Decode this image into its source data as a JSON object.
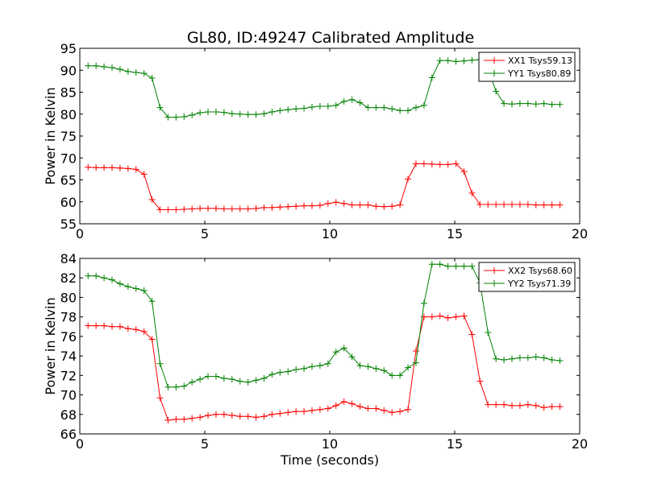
{
  "title": "GL80, ID:49247 Calibrated Amplitude",
  "colors": {
    "xx": "#ff0000",
    "yy": "#008000"
  },
  "chart_data": [
    {
      "type": "line",
      "xlabel": "",
      "ylabel": "Power in Kelvin",
      "xlim": [
        0,
        20
      ],
      "ylim": [
        55,
        95
      ],
      "xticks": [
        "0",
        "5",
        "10",
        "15",
        "20"
      ],
      "yticks": [
        "55",
        "60",
        "65",
        "70",
        "75",
        "80",
        "85",
        "90",
        "95"
      ],
      "legend_position": "top-right",
      "x": [
        0.33,
        0.65,
        0.97,
        1.29,
        1.61,
        1.93,
        2.25,
        2.57,
        2.89,
        3.21,
        3.53,
        3.85,
        4.17,
        4.49,
        4.81,
        5.13,
        5.45,
        5.77,
        6.09,
        6.41,
        6.73,
        7.05,
        7.37,
        7.69,
        8.01,
        8.33,
        8.65,
        8.97,
        9.29,
        9.61,
        9.93,
        10.25,
        10.57,
        10.89,
        11.21,
        11.53,
        11.85,
        12.17,
        12.49,
        12.81,
        13.13,
        13.45,
        13.77,
        14.09,
        14.41,
        14.73,
        15.05,
        15.37,
        15.69,
        16.01,
        16.33,
        16.65,
        16.97,
        17.29,
        17.61,
        17.93,
        18.25,
        18.57,
        18.89,
        19.21
      ],
      "series": [
        {
          "name": "XX1 Tsys59.13",
          "color": "#ff0000",
          "values": [
            67.9,
            67.8,
            67.8,
            67.8,
            67.7,
            67.6,
            67.4,
            66.3,
            60.5,
            58.2,
            58.2,
            58.2,
            58.3,
            58.4,
            58.5,
            58.5,
            58.5,
            58.4,
            58.4,
            58.4,
            58.4,
            58.5,
            58.7,
            58.7,
            58.8,
            58.9,
            59.0,
            59.1,
            59.1,
            59.2,
            59.6,
            59.9,
            59.6,
            59.3,
            59.3,
            59.3,
            59.0,
            58.9,
            59.0,
            59.3,
            65.2,
            68.7,
            68.7,
            68.6,
            68.5,
            68.5,
            68.7,
            66.9,
            62.0,
            59.4,
            59.4,
            59.4,
            59.4,
            59.4,
            59.4,
            59.4,
            59.3,
            59.3,
            59.3,
            59.3
          ]
        },
        {
          "name": "YY1 Tsys80.89",
          "color": "#008000",
          "values": [
            91.0,
            91.0,
            90.8,
            90.6,
            90.2,
            89.7,
            89.5,
            89.3,
            88.2,
            81.5,
            79.3,
            79.3,
            79.4,
            79.8,
            80.3,
            80.5,
            80.5,
            80.4,
            80.1,
            80.0,
            79.9,
            79.9,
            80.1,
            80.5,
            80.8,
            81.0,
            81.2,
            81.3,
            81.6,
            81.8,
            81.8,
            82.0,
            82.9,
            83.3,
            82.6,
            81.5,
            81.5,
            81.5,
            81.2,
            80.8,
            80.8,
            81.5,
            82.0,
            88.3,
            92.2,
            92.2,
            92.0,
            92.1,
            92.3,
            92.4,
            90.4,
            85.2,
            82.4,
            82.3,
            82.4,
            82.4,
            82.3,
            82.4,
            82.2,
            82.2
          ]
        }
      ]
    },
    {
      "type": "line",
      "xlabel": "Time (seconds)",
      "ylabel": "Power in Kelvin",
      "xlim": [
        0,
        20
      ],
      "ylim": [
        66,
        84
      ],
      "xticks": [
        "0",
        "5",
        "10",
        "15",
        "20"
      ],
      "yticks": [
        "66",
        "68",
        "70",
        "72",
        "74",
        "76",
        "78",
        "80",
        "82",
        "84"
      ],
      "legend_position": "top-right",
      "x": [
        0.33,
        0.65,
        0.97,
        1.29,
        1.61,
        1.93,
        2.25,
        2.57,
        2.89,
        3.21,
        3.53,
        3.85,
        4.17,
        4.49,
        4.81,
        5.13,
        5.45,
        5.77,
        6.09,
        6.41,
        6.73,
        7.05,
        7.37,
        7.69,
        8.01,
        8.33,
        8.65,
        8.97,
        9.29,
        9.61,
        9.93,
        10.25,
        10.57,
        10.89,
        11.21,
        11.53,
        11.85,
        12.17,
        12.49,
        12.81,
        13.13,
        13.45,
        13.77,
        14.09,
        14.41,
        14.73,
        15.05,
        15.37,
        15.69,
        16.01,
        16.33,
        16.65,
        16.97,
        17.29,
        17.61,
        17.93,
        18.25,
        18.57,
        18.89,
        19.21
      ],
      "series": [
        {
          "name": "XX2 Tsys68.60",
          "color": "#ff0000",
          "values": [
            77.1,
            77.1,
            77.1,
            77.0,
            77.0,
            76.8,
            76.7,
            76.5,
            75.7,
            69.7,
            67.4,
            67.5,
            67.5,
            67.6,
            67.7,
            67.9,
            68.0,
            68.0,
            67.9,
            67.8,
            67.8,
            67.7,
            67.8,
            68.0,
            68.1,
            68.2,
            68.3,
            68.3,
            68.4,
            68.5,
            68.6,
            68.9,
            69.3,
            69.1,
            68.8,
            68.6,
            68.6,
            68.4,
            68.2,
            68.3,
            68.5,
            74.5,
            78.0,
            78.0,
            78.1,
            77.9,
            78.0,
            78.1,
            76.2,
            71.4,
            69.0,
            69.0,
            69.0,
            68.9,
            68.9,
            69.0,
            68.9,
            68.7,
            68.8,
            68.8
          ]
        },
        {
          "name": "YY2 Tsys71.39",
          "color": "#008000",
          "values": [
            82.2,
            82.2,
            82.0,
            81.8,
            81.4,
            81.1,
            80.9,
            80.7,
            79.6,
            73.2,
            70.8,
            70.8,
            70.9,
            71.3,
            71.6,
            71.9,
            71.9,
            71.7,
            71.6,
            71.4,
            71.3,
            71.5,
            71.7,
            72.1,
            72.3,
            72.4,
            72.6,
            72.7,
            72.9,
            73.0,
            73.2,
            74.4,
            74.8,
            73.9,
            73.0,
            72.9,
            72.7,
            72.5,
            72.0,
            72.0,
            72.8,
            73.3,
            79.4,
            83.4,
            83.4,
            83.2,
            83.2,
            83.2,
            83.2,
            81.5,
            76.4,
            73.7,
            73.6,
            73.7,
            73.8,
            73.8,
            73.9,
            73.8,
            73.6,
            73.5
          ]
        }
      ]
    }
  ]
}
